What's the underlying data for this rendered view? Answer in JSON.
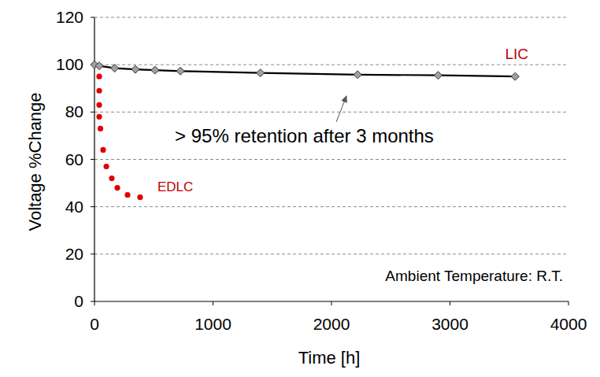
{
  "chart_data": {
    "type": "line",
    "x_label": "Time [h]",
    "y_label": "Voltage %Change",
    "xlim": [
      0,
      4000
    ],
    "ylim": [
      0,
      120
    ],
    "xticks": [
      0,
      1000,
      2000,
      3000,
      4000
    ],
    "yticks": [
      0,
      20,
      40,
      60,
      80,
      100,
      120
    ],
    "grid": true,
    "series": [
      {
        "name": "LIC",
        "color": "#000000",
        "marker": "diamond",
        "line_style": "solid",
        "x": [
          0,
          40,
          170,
          345,
          510,
          725,
          1400,
          2220,
          2900,
          3550
        ],
        "values": [
          100,
          99.5,
          98.5,
          98,
          97.7,
          97.3,
          96.5,
          95.8,
          95.5,
          95
        ]
      },
      {
        "name": "EDLC",
        "color": "#e00000",
        "marker": "circle",
        "line_style": "none",
        "x": [
          40,
          40,
          40,
          40,
          50,
          73,
          100,
          146,
          193,
          279,
          385
        ],
        "values": [
          95,
          89,
          83,
          78,
          73,
          64,
          57,
          52,
          48,
          45,
          44
        ]
      }
    ],
    "annotations": [
      "> 95% retention after 3 months",
      "Ambient Temperature: R.T."
    ]
  }
}
